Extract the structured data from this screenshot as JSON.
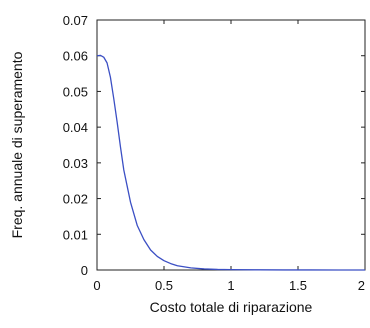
{
  "chart_data": {
    "type": "line",
    "xlabel": "Costo totale di riparazione",
    "ylabel": "Freq. annuale di superamento",
    "xlim": [
      0,
      2
    ],
    "ylim": [
      0,
      0.07
    ],
    "x_ticks": [
      "0",
      "0.5",
      "1",
      "1.5",
      "2"
    ],
    "y_ticks": [
      "0",
      "0.01",
      "0.02",
      "0.03",
      "0.04",
      "0.05",
      "0.06",
      "0.07"
    ],
    "grid": false,
    "series": [
      {
        "color": "#3b4fc4",
        "x": [
          0,
          0.025,
          0.05,
          0.075,
          0.1,
          0.125,
          0.15,
          0.175,
          0.2,
          0.25,
          0.3,
          0.35,
          0.4,
          0.45,
          0.5,
          0.55,
          0.6,
          0.7,
          0.8,
          0.9,
          1.0,
          1.2,
          1.4,
          1.6,
          1.8,
          2.0
        ],
        "y": [
          0.06,
          0.0601,
          0.0596,
          0.058,
          0.054,
          0.048,
          0.0415,
          0.0345,
          0.028,
          0.019,
          0.0125,
          0.0085,
          0.0056,
          0.0038,
          0.0026,
          0.0018,
          0.0012,
          0.0006,
          0.0003,
          0.00015,
          0.0001,
          5e-05,
          2e-05,
          1e-05,
          5e-06,
          0.0
        ]
      }
    ]
  }
}
